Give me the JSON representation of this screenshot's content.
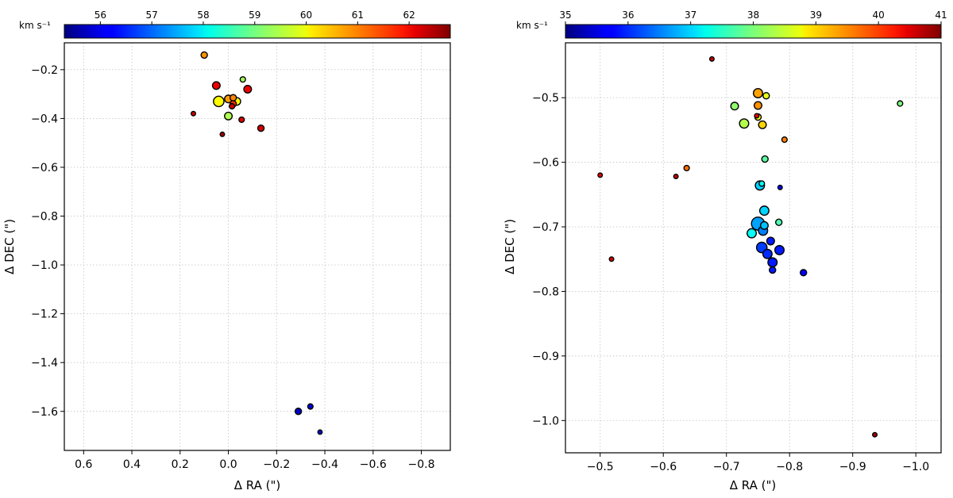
{
  "chart_data": [
    {
      "type": "scatter",
      "panel": "left",
      "xlabel": "Δ RA (\")",
      "ylabel": "Δ DEC (\")",
      "xlim": [
        0.68,
        -0.92
      ],
      "ylim": [
        -1.76,
        -0.09
      ],
      "xticks": [
        0.6,
        0.4,
        0.2,
        0.0,
        -0.2,
        -0.4,
        -0.6,
        -0.8
      ],
      "xtick_labels": [
        "0.6",
        "0.4",
        "0.2",
        "0.0",
        "−0.2",
        "−0.4",
        "−0.6",
        "−0.8"
      ],
      "yticks": [
        -0.2,
        -0.4,
        -0.6,
        -0.8,
        -1.0,
        -1.2,
        -1.4,
        -1.6
      ],
      "ytick_labels": [
        "−0.2",
        "−0.4",
        "−0.6",
        "−0.8",
        "−1.0",
        "−1.2",
        "−1.4",
        "−1.6"
      ],
      "grid": true,
      "colorbar": {
        "label": "km s⁻¹",
        "range": [
          55.3,
          62.8
        ],
        "ticks": [
          56,
          57,
          58,
          59,
          60,
          61,
          62
        ],
        "tick_labels": [
          "56",
          "57",
          "58",
          "59",
          "60",
          "61",
          "62"
        ],
        "colormap": "jet"
      },
      "points": [
        {
          "x": 0.1,
          "y": -0.14,
          "v": 60.8,
          "s": 3
        },
        {
          "x": 0.05,
          "y": -0.265,
          "v": 62.0,
          "s": 4
        },
        {
          "x": -0.06,
          "y": -0.24,
          "v": 59.3,
          "s": 2
        },
        {
          "x": -0.08,
          "y": -0.28,
          "v": 62.0,
          "s": 4
        },
        {
          "x": 0.0,
          "y": -0.32,
          "v": 60.7,
          "s": 4
        },
        {
          "x": -0.02,
          "y": -0.315,
          "v": 60.9,
          "s": 3
        },
        {
          "x": 0.04,
          "y": -0.33,
          "v": 60.0,
          "s": 6
        },
        {
          "x": -0.035,
          "y": -0.33,
          "v": 60.0,
          "s": 4
        },
        {
          "x": -0.02,
          "y": -0.34,
          "v": 61.5,
          "s": 3
        },
        {
          "x": -0.015,
          "y": -0.35,
          "v": 62.2,
          "s": 2
        },
        {
          "x": 0.0,
          "y": -0.39,
          "v": 59.4,
          "s": 4
        },
        {
          "x": 0.145,
          "y": -0.38,
          "v": 62.2,
          "s": 1
        },
        {
          "x": -0.055,
          "y": -0.405,
          "v": 62.1,
          "s": 2
        },
        {
          "x": -0.135,
          "y": -0.44,
          "v": 62.2,
          "s": 3
        },
        {
          "x": 0.025,
          "y": -0.465,
          "v": 62.5,
          "s": 1
        },
        {
          "x": -0.29,
          "y": -1.6,
          "v": 55.8,
          "s": 3
        },
        {
          "x": -0.34,
          "y": -1.58,
          "v": 55.9,
          "s": 2
        },
        {
          "x": -0.38,
          "y": -1.685,
          "v": 55.9,
          "s": 1
        }
      ]
    },
    {
      "type": "scatter",
      "panel": "right",
      "xlabel": "Δ RA (\")",
      "ylabel": "Δ DEC (\")",
      "xlim": [
        -0.445,
        -1.04
      ],
      "ylim": [
        -1.05,
        -0.415
      ],
      "xticks": [
        -0.5,
        -0.6,
        -0.7,
        -0.8,
        -0.9,
        -1.0
      ],
      "xtick_labels": [
        "−0.5",
        "−0.6",
        "−0.7",
        "−0.8",
        "−0.9",
        "−1.0"
      ],
      "yticks": [
        -0.5,
        -0.6,
        -0.7,
        -0.8,
        -0.9,
        -1.0
      ],
      "ytick_labels": [
        "−0.5",
        "−0.6",
        "−0.7",
        "−0.8",
        "−0.9",
        "−1.0"
      ],
      "grid": true,
      "colorbar": {
        "label": "km s⁻¹",
        "range": [
          35,
          41
        ],
        "ticks": [
          35,
          36,
          37,
          38,
          39,
          40,
          41
        ],
        "tick_labels": [
          "35",
          "36",
          "37",
          "38",
          "39",
          "40",
          "41"
        ],
        "colormap": "jet"
      },
      "points": [
        {
          "x": -0.677,
          "y": -0.44,
          "v": 40.6,
          "s": 1
        },
        {
          "x": -0.75,
          "y": -0.493,
          "v": 39.3,
          "s": 5
        },
        {
          "x": -0.763,
          "y": -0.497,
          "v": 38.6,
          "s": 3
        },
        {
          "x": -0.713,
          "y": -0.513,
          "v": 38.1,
          "s": 4
        },
        {
          "x": -0.75,
          "y": -0.512,
          "v": 39.4,
          "s": 4
        },
        {
          "x": -0.748,
          "y": -0.528,
          "v": 40.3,
          "s": 1
        },
        {
          "x": -0.75,
          "y": -0.53,
          "v": 38.7,
          "s": 3
        },
        {
          "x": -0.728,
          "y": -0.54,
          "v": 38.3,
          "s": 5
        },
        {
          "x": -0.757,
          "y": -0.542,
          "v": 39.0,
          "s": 4
        },
        {
          "x": -0.792,
          "y": -0.565,
          "v": 39.5,
          "s": 2
        },
        {
          "x": -0.761,
          "y": -0.595,
          "v": 37.8,
          "s": 3
        },
        {
          "x": -0.756,
          "y": -0.633,
          "v": 37.3,
          "s": 2
        },
        {
          "x": -0.753,
          "y": -0.636,
          "v": 37.0,
          "s": 5
        },
        {
          "x": -0.785,
          "y": -0.639,
          "v": 35.8,
          "s": 1
        },
        {
          "x": -0.76,
          "y": -0.675,
          "v": 37.0,
          "s": 5
        },
        {
          "x": -0.783,
          "y": -0.693,
          "v": 37.7,
          "s": 3
        },
        {
          "x": -0.75,
          "y": -0.695,
          "v": 36.7,
          "s": 8
        },
        {
          "x": -0.76,
          "y": -0.698,
          "v": 36.9,
          "s": 4
        },
        {
          "x": -0.758,
          "y": -0.706,
          "v": 36.5,
          "s": 5
        },
        {
          "x": -0.74,
          "y": -0.71,
          "v": 37.3,
          "s": 5
        },
        {
          "x": -0.77,
          "y": -0.722,
          "v": 35.9,
          "s": 4
        },
        {
          "x": -0.756,
          "y": -0.732,
          "v": 36.1,
          "s": 6
        },
        {
          "x": -0.784,
          "y": -0.736,
          "v": 35.9,
          "s": 5
        },
        {
          "x": -0.765,
          "y": -0.742,
          "v": 36.0,
          "s": 5
        },
        {
          "x": -0.773,
          "y": -0.755,
          "v": 35.9,
          "s": 5
        },
        {
          "x": -0.773,
          "y": -0.767,
          "v": 35.9,
          "s": 3
        },
        {
          "x": -0.822,
          "y": -0.771,
          "v": 35.7,
          "s": 3
        },
        {
          "x": -0.5,
          "y": -0.62,
          "v": 40.4,
          "s": 1
        },
        {
          "x": -0.62,
          "y": -0.622,
          "v": 40.6,
          "s": 1
        },
        {
          "x": -0.637,
          "y": -0.609,
          "v": 39.6,
          "s": 2
        },
        {
          "x": -0.518,
          "y": -0.75,
          "v": 40.5,
          "s": 1
        },
        {
          "x": -0.975,
          "y": -0.509,
          "v": 38.0,
          "s": 2
        },
        {
          "x": -0.935,
          "y": -1.022,
          "v": 40.8,
          "s": 1
        }
      ]
    }
  ]
}
